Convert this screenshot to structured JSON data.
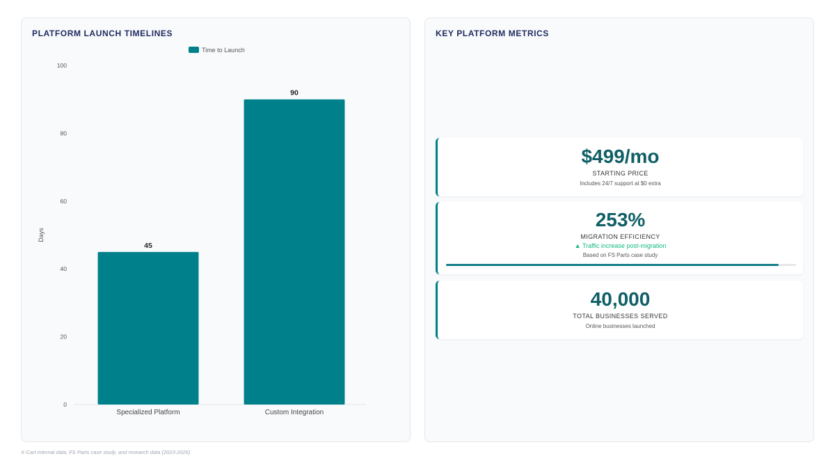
{
  "left_panel": {
    "title": "PLATFORM LAUNCH TIMELINES"
  },
  "right_panel": {
    "title": "KEY PLATFORM METRICS"
  },
  "chart_data": {
    "type": "bar",
    "categories": [
      "Specialized Platform",
      "Custom Integration"
    ],
    "series": [
      {
        "name": "Time to Launch",
        "values": [
          45,
          90
        ]
      }
    ],
    "ylabel": "Days",
    "ylim": [
      0,
      100
    ],
    "yticks": [
      0,
      20,
      40,
      60,
      80,
      100
    ],
    "legend": "top-center",
    "grid": false,
    "bar_color": "#00808a"
  },
  "metrics": [
    {
      "value": "$499/mo",
      "label": "STARTING PRICE",
      "note": "Includes 24/7 support at $0 extra"
    },
    {
      "value": "253%",
      "label": "MIGRATION EFFICIENCY",
      "trend": "▲ Traffic increase post-migration",
      "note": "Based on FS Parts case study",
      "progress": 0.95
    },
    {
      "value": "40,000",
      "label": "TOTAL BUSINESSES SERVED",
      "note": "Online businesses launched"
    }
  ],
  "footnote": "X-Cart internal data, FS Parts case study, and research data (2023-2026)",
  "colors": {
    "accent": "#00808a",
    "value_text": "#0f5f66",
    "trend": "#10b981",
    "title": "#1e2a5e"
  }
}
